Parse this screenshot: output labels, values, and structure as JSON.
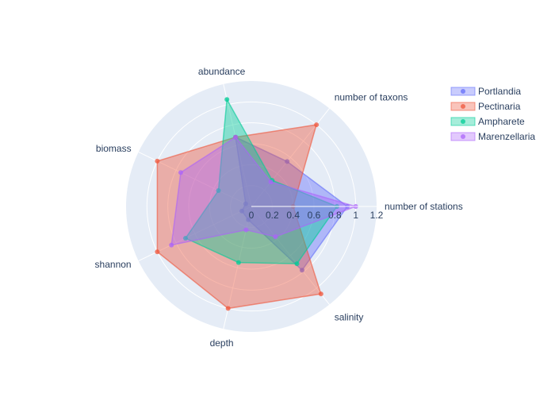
{
  "chart_data": {
    "type": "radar",
    "axes": [
      "number of stations",
      "number of taxons",
      "abundance",
      "biomass",
      "shannon",
      "depth",
      "salinity"
    ],
    "radial_range": [
      0,
      1.2
    ],
    "radial_ticks": [
      "0",
      "0.2",
      "0.4",
      "0.6",
      "0.8",
      "1",
      "1.2"
    ],
    "grid": true,
    "legend_position": "top-right",
    "series": [
      {
        "name": "Portlandia",
        "color": "#636efa",
        "values": [
          0.92,
          0.55,
          0.68,
          0.06,
          0.1,
          0.13,
          0.78
        ]
      },
      {
        "name": "Pectinaria",
        "color": "#ef553b",
        "values": [
          0.4,
          1.0,
          0.68,
          1.0,
          1.0,
          1.0,
          1.07
        ]
      },
      {
        "name": "Ampharete",
        "color": "#00cc96",
        "values": [
          0.82,
          0.32,
          1.05,
          0.35,
          0.7,
          0.55,
          0.7
        ]
      },
      {
        "name": "Marenzellaria",
        "color": "#ab63fa",
        "values": [
          1.0,
          0.3,
          0.68,
          0.75,
          0.85,
          0.23,
          0.37
        ]
      }
    ]
  }
}
